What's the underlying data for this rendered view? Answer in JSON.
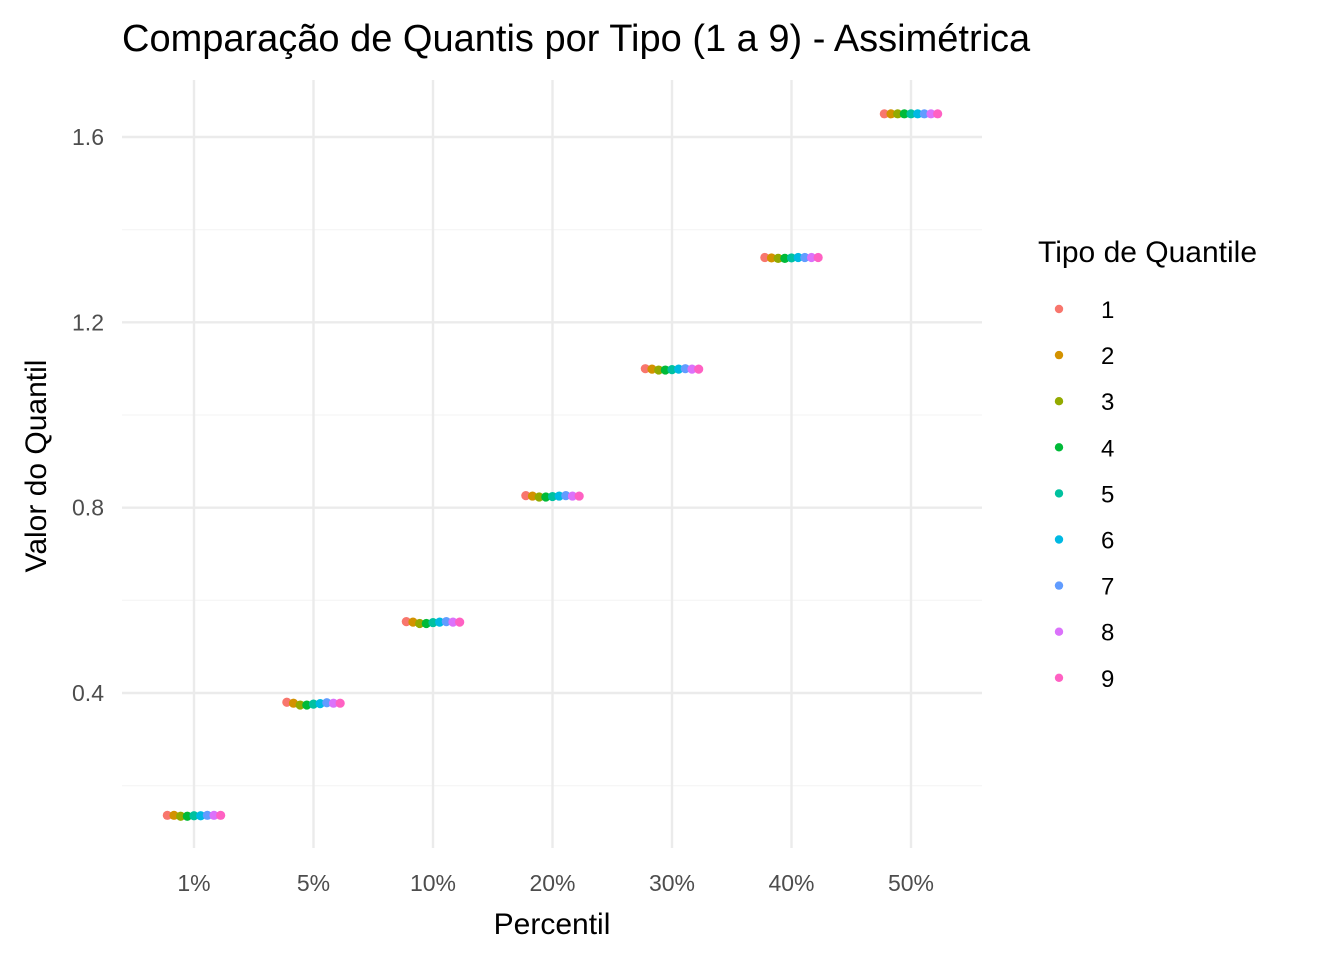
{
  "chart_data": {
    "type": "scatter",
    "title": "Comparação de Quantis por Tipo (1 a 9) - Assimétrica",
    "xlabel": "Percentil",
    "ylabel": "Valor do Quantil",
    "categories": [
      "1%",
      "5%",
      "10%",
      "20%",
      "30%",
      "40%",
      "50%"
    ],
    "y_ticks": [
      0.4,
      0.8,
      1.2,
      1.6
    ],
    "y_tick_labels": [
      "0.4",
      "0.8",
      "1.2",
      "1.6"
    ],
    "ylim": [
      0.08,
      1.73
    ],
    "grid": true,
    "position": "dodge",
    "legend": {
      "title": "Tipo de Quantile",
      "placement": "right"
    },
    "series": [
      {
        "name": "1",
        "color": "#F8766D",
        "values": [
          0.136,
          0.38,
          0.554,
          0.826,
          1.1,
          1.34,
          1.65
        ]
      },
      {
        "name": "2",
        "color": "#D39200",
        "values": [
          0.136,
          0.378,
          0.553,
          0.825,
          1.099,
          1.339,
          1.65
        ]
      },
      {
        "name": "3",
        "color": "#93AA00",
        "values": [
          0.134,
          0.374,
          0.55,
          0.823,
          1.097,
          1.338,
          1.65
        ]
      },
      {
        "name": "4",
        "color": "#00BA38",
        "values": [
          0.134,
          0.374,
          0.55,
          0.823,
          1.097,
          1.338,
          1.65
        ]
      },
      {
        "name": "5",
        "color": "#00C19F",
        "values": [
          0.135,
          0.376,
          0.552,
          0.824,
          1.098,
          1.339,
          1.65
        ]
      },
      {
        "name": "6",
        "color": "#00B9E3",
        "values": [
          0.135,
          0.377,
          0.553,
          0.825,
          1.099,
          1.34,
          1.65
        ]
      },
      {
        "name": "7",
        "color": "#619CFF",
        "values": [
          0.136,
          0.379,
          0.554,
          0.826,
          1.1,
          1.34,
          1.65
        ]
      },
      {
        "name": "8",
        "color": "#DB72FB",
        "values": [
          0.136,
          0.378,
          0.553,
          0.825,
          1.099,
          1.34,
          1.65
        ]
      },
      {
        "name": "9",
        "color": "#FF61C3",
        "values": [
          0.136,
          0.378,
          0.553,
          0.825,
          1.099,
          1.34,
          1.65
        ]
      }
    ]
  },
  "colors": {
    "background": "#FFFFFF",
    "grid_major": "#EBEBEB",
    "grid_minor": "#F5F5F5",
    "tick_text": "#4D4D4D",
    "text": "#000000"
  }
}
